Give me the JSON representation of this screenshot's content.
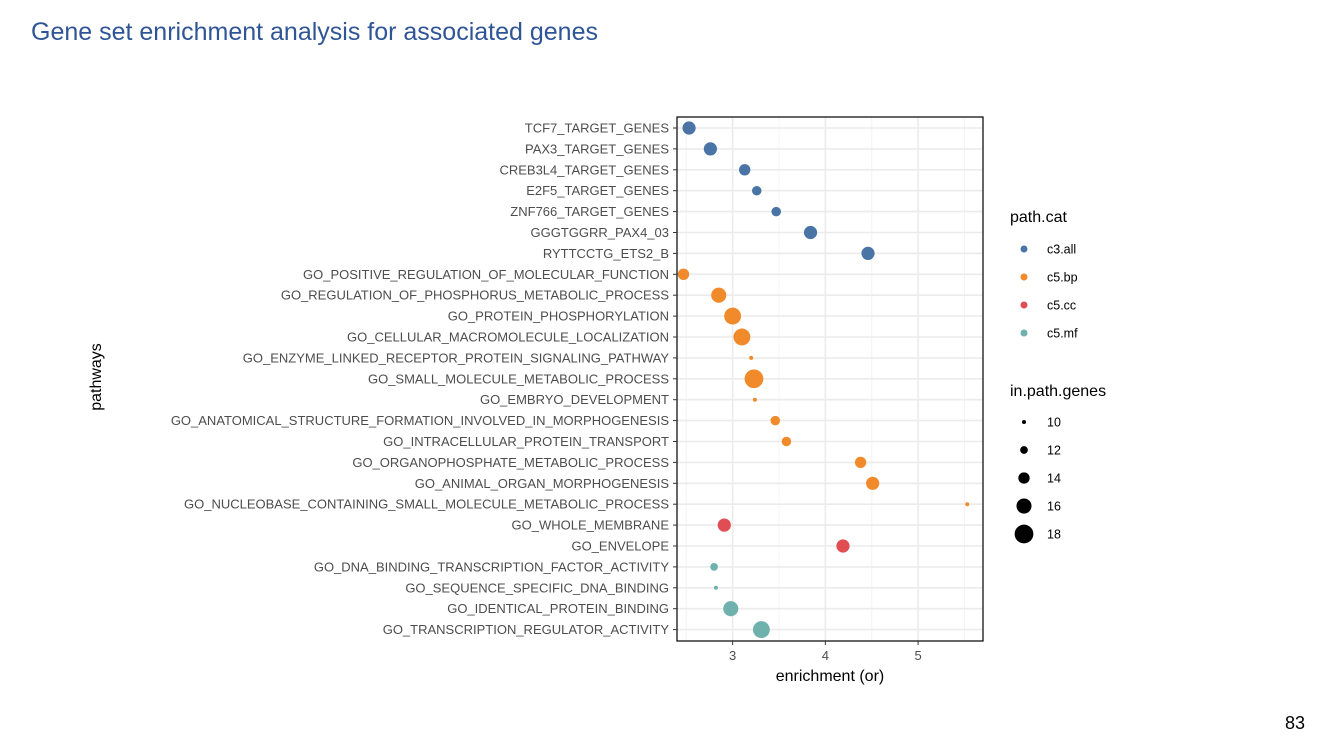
{
  "slide": {
    "title": "Gene set enrichment analysis for associated genes",
    "page_number": "83"
  },
  "colors": {
    "c3.all": "#4a74a5",
    "c5.bp": "#f08a2a",
    "c5.cc": "#e04e54",
    "c5.mf": "#6fb1ad"
  },
  "chart_data": {
    "type": "scatter",
    "xlabel": "enrichment (or)",
    "ylabel": "pathways",
    "xlim": [
      2.4,
      5.7
    ],
    "xticks": [
      3,
      4,
      5
    ],
    "grid": true,
    "legend_placement": "right",
    "color_legend": {
      "title": "path.cat",
      "entries": [
        "c3.all",
        "c5.bp",
        "c5.cc",
        "c5.mf"
      ]
    },
    "size_legend": {
      "title": "in.path.genes",
      "entries": [
        10,
        12,
        14,
        16,
        18
      ]
    },
    "points": [
      {
        "pathway": "TCF7_TARGET_GENES",
        "x": 2.53,
        "cat": "c3.all",
        "size": 15
      },
      {
        "pathway": "PAX3_TARGET_GENES",
        "x": 2.76,
        "cat": "c3.all",
        "size": 15
      },
      {
        "pathway": "CREB3L4_TARGET_GENES",
        "x": 3.13,
        "cat": "c3.all",
        "size": 14
      },
      {
        "pathway": "E2F5_TARGET_GENES",
        "x": 3.26,
        "cat": "c3.all",
        "size": 13
      },
      {
        "pathway": "ZNF766_TARGET_GENES",
        "x": 3.47,
        "cat": "c3.all",
        "size": 13
      },
      {
        "pathway": "GGGTGGRR_PAX4_03",
        "x": 3.84,
        "cat": "c3.all",
        "size": 15
      },
      {
        "pathway": "RYTTCCTG_ETS2_B",
        "x": 4.46,
        "cat": "c3.all",
        "size": 15
      },
      {
        "pathway": "GO_POSITIVE_REGULATION_OF_MOLECULAR_FUNCTION",
        "x": 2.47,
        "cat": "c5.bp",
        "size": 14
      },
      {
        "pathway": "GO_REGULATION_OF_PHOSPHORUS_METABOLIC_PROCESS",
        "x": 2.85,
        "cat": "c5.bp",
        "size": 16
      },
      {
        "pathway": "GO_PROTEIN_PHOSPHORYLATION",
        "x": 3.0,
        "cat": "c5.bp",
        "size": 17
      },
      {
        "pathway": "GO_CELLULAR_MACROMOLECULE_LOCALIZATION",
        "x": 3.1,
        "cat": "c5.bp",
        "size": 17
      },
      {
        "pathway": "GO_ENZYME_LINKED_RECEPTOR_PROTEIN_SIGNALING_PATHWAY",
        "x": 3.2,
        "cat": "c5.bp",
        "size": 10
      },
      {
        "pathway": "GO_SMALL_MOLECULE_METABOLIC_PROCESS",
        "x": 3.23,
        "cat": "c5.bp",
        "size": 18
      },
      {
        "pathway": "GO_EMBRYO_DEVELOPMENT",
        "x": 3.24,
        "cat": "c5.bp",
        "size": 10
      },
      {
        "pathway": "GO_ANATOMICAL_STRUCTURE_FORMATION_INVOLVED_IN_MORPHOGENESIS",
        "x": 3.46,
        "cat": "c5.bp",
        "size": 13
      },
      {
        "pathway": "GO_INTRACELLULAR_PROTEIN_TRANSPORT",
        "x": 3.58,
        "cat": "c5.bp",
        "size": 13
      },
      {
        "pathway": "GO_ORGANOPHOSPHATE_METABOLIC_PROCESS",
        "x": 4.38,
        "cat": "c5.bp",
        "size": 14
      },
      {
        "pathway": "GO_ANIMAL_ORGAN_MORPHOGENESIS",
        "x": 4.51,
        "cat": "c5.bp",
        "size": 15
      },
      {
        "pathway": "GO_NUCLEOBASE_CONTAINING_SMALL_MOLECULE_METABOLIC_PROCESS",
        "x": 5.53,
        "cat": "c5.bp",
        "size": 10
      },
      {
        "pathway": "GO_WHOLE_MEMBRANE",
        "x": 2.91,
        "cat": "c5.cc",
        "size": 15
      },
      {
        "pathway": "GO_ENVELOPE",
        "x": 4.19,
        "cat": "c5.cc",
        "size": 15
      },
      {
        "pathway": "GO_DNA_BINDING_TRANSCRIPTION_FACTOR_ACTIVITY",
        "x": 2.8,
        "cat": "c5.mf",
        "size": 12
      },
      {
        "pathway": "GO_SEQUENCE_SPECIFIC_DNA_BINDING",
        "x": 2.82,
        "cat": "c5.mf",
        "size": 10
      },
      {
        "pathway": "GO_IDENTICAL_PROTEIN_BINDING",
        "x": 2.98,
        "cat": "c5.mf",
        "size": 16
      },
      {
        "pathway": "GO_TRANSCRIPTION_REGULATOR_ACTIVITY",
        "x": 3.31,
        "cat": "c5.mf",
        "size": 17
      }
    ]
  }
}
